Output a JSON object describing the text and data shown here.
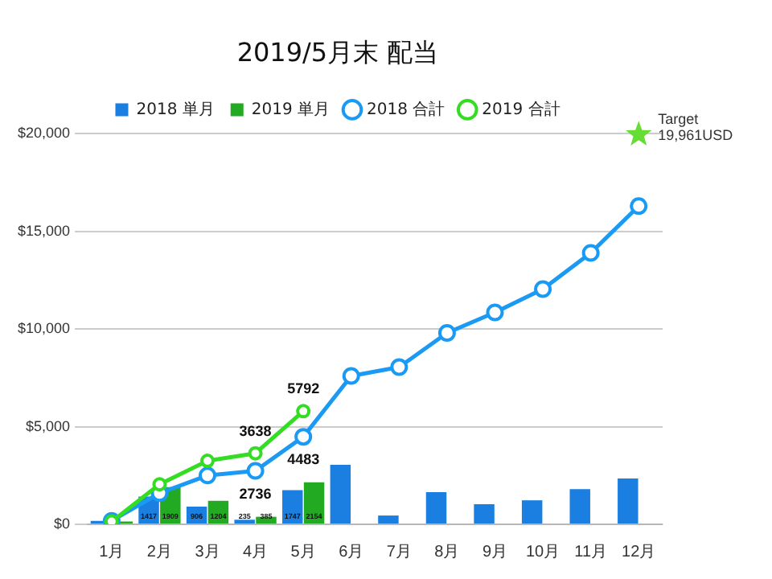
{
  "chart_data": {
    "type": "bar",
    "title": "2019/5月末 配当",
    "categories": [
      "1月",
      "2月",
      "3月",
      "4月",
      "5月",
      "6月",
      "7月",
      "8月",
      "9月",
      "10月",
      "11月",
      "12月"
    ],
    "series": [
      {
        "name": "2018 単月",
        "color": "#1a7fe0",
        "values": [
          178,
          1417,
          906,
          235,
          1747,
          3050,
          450,
          1650,
          1030,
          1230,
          1800,
          2350
        ],
        "value_labels": [
          null,
          "1417",
          "906",
          "235",
          "1747",
          null,
          null,
          null,
          null,
          null,
          null,
          null
        ]
      },
      {
        "name": "2019 単月",
        "color": "#22aa22",
        "values": [
          140,
          1909,
          1204,
          385,
          2154,
          null,
          null,
          null,
          null,
          null,
          null,
          null
        ],
        "value_labels": [
          null,
          "1909",
          "1204",
          "385",
          "2154",
          null,
          null,
          null,
          null,
          null,
          null,
          null
        ]
      },
      {
        "name": "2018 合計",
        "type": "line",
        "color": "#1a9af5",
        "marker": "circle",
        "values": [
          178,
          1595,
          2501,
          2736,
          4483,
          7600,
          8050,
          9800,
          10850,
          12050,
          13900,
          16300
        ],
        "value_labels": [
          null,
          null,
          null,
          "2736",
          "4483",
          null,
          null,
          null,
          null,
          null,
          null,
          null
        ]
      },
      {
        "name": "2019 合計",
        "type": "line",
        "color": "#33dd22",
        "marker": "circle",
        "values": [
          140,
          2049,
          3253,
          3638,
          5792,
          null,
          null,
          null,
          null,
          null,
          null,
          null
        ],
        "value_labels": [
          null,
          null,
          null,
          "3638",
          "5792",
          null,
          null,
          null,
          null,
          null,
          null,
          null
        ]
      },
      {
        "type": "scatter",
        "color": "#66dd33",
        "marker": "star",
        "values": [
          null,
          null,
          null,
          null,
          null,
          null,
          null,
          null,
          null,
          null,
          null,
          19961
        ]
      }
    ],
    "ylim": [
      0,
      20000
    ],
    "yticks": [
      {
        "value": 0,
        "label": "$0"
      },
      {
        "value": 5000,
        "label": "$5,000"
      },
      {
        "value": 10000,
        "label": "$10,000"
      },
      {
        "value": 15000,
        "label": "$15,000"
      },
      {
        "value": 20000,
        "label": "$20,000"
      }
    ],
    "grid": "y",
    "legend": "top",
    "annotations": [
      {
        "text": "Target\n19,961USD",
        "x": "12月",
        "y": 19961
      }
    ]
  }
}
